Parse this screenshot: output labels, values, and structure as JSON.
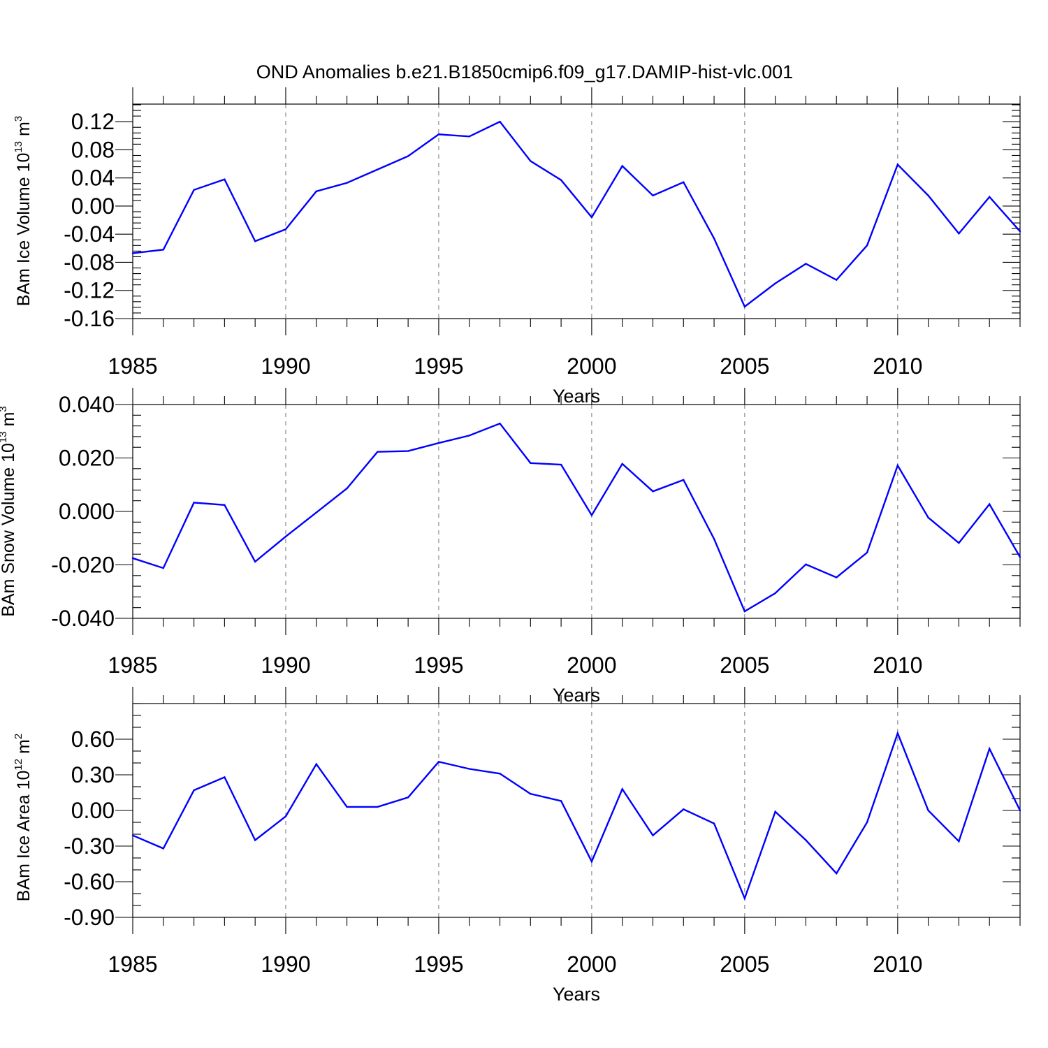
{
  "title": "OND Anomalies b.e21.B1850cmip6.f09_g17.DAMIP-hist-vlc.001",
  "colors": {
    "line": "#0000ff",
    "axis": "#000000",
    "grid": "#777777"
  },
  "chart_data": [
    {
      "type": "line",
      "ylabel_text": "BAm Ice Volume 10",
      "ylabel_exp": "13",
      "ylabel_unit": " m",
      "ylabel_unit_exp": "3",
      "xlabel": "Years",
      "x": [
        1985,
        1986,
        1987,
        1988,
        1989,
        1990,
        1991,
        1992,
        1993,
        1994,
        1995,
        1996,
        1997,
        1998,
        1999,
        2000,
        2001,
        2002,
        2003,
        2004,
        2005,
        2006,
        2007,
        2008,
        2009,
        2010,
        2011,
        2012,
        2013,
        2014
      ],
      "series": [
        {
          "name": "BAm Ice Volume",
          "values": [
            -0.067,
            -0.062,
            0.023,
            0.038,
            -0.05,
            -0.033,
            0.021,
            0.033,
            0.052,
            0.071,
            0.102,
            0.099,
            0.12,
            0.064,
            0.037,
            -0.016,
            0.057,
            0.015,
            0.034,
            -0.046,
            -0.143,
            -0.11,
            -0.082,
            -0.105,
            -0.056,
            0.059,
            0.015,
            -0.039,
            0.013,
            -0.036
          ]
        }
      ],
      "xlim": [
        1985,
        2014
      ],
      "ylim": [
        -0.16,
        0.145
      ],
      "yticks": [
        -0.16,
        -0.12,
        -0.08,
        -0.04,
        0.0,
        0.04,
        0.08,
        0.12
      ],
      "ytick_labels": [
        "-0.16",
        "-0.12",
        "-0.08",
        "-0.04",
        "0.00",
        "0.04",
        "0.08",
        "0.12"
      ],
      "y_minor_step": 0.008,
      "xticks": [
        1985,
        1990,
        1995,
        2000,
        2005,
        2010
      ],
      "xtick_labels": [
        "1985",
        "1990",
        "1995",
        "2000",
        "2005",
        "2010"
      ],
      "grid": "vertical-dashed"
    },
    {
      "type": "line",
      "ylabel_text": "BAm Snow Volume 10",
      "ylabel_exp": "13",
      "ylabel_unit": " m",
      "ylabel_unit_exp": "3",
      "xlabel": "Years",
      "x": [
        1985,
        1986,
        1987,
        1988,
        1989,
        1990,
        1991,
        1992,
        1993,
        1994,
        1995,
        1996,
        1997,
        1998,
        1999,
        2000,
        2001,
        2002,
        2003,
        2004,
        2005,
        2006,
        2007,
        2008,
        2009,
        2010,
        2011,
        2012,
        2013,
        2014
      ],
      "series": [
        {
          "name": "BAm Snow Volume",
          "values": [
            -0.0175,
            -0.0212,
            0.0033,
            0.0024,
            -0.0188,
            -0.0094,
            -0.0004,
            0.0086,
            0.0223,
            0.0226,
            0.0256,
            0.0284,
            0.0329,
            0.0181,
            0.0175,
            -0.0014,
            0.0178,
            0.0075,
            0.0118,
            -0.0103,
            -0.0374,
            -0.0306,
            -0.0198,
            -0.0247,
            -0.0154,
            0.0172,
            -0.0023,
            -0.0118,
            0.0027,
            -0.0171
          ]
        }
      ],
      "xlim": [
        1985,
        2014
      ],
      "ylim": [
        -0.04,
        0.04
      ],
      "yticks": [
        -0.04,
        -0.02,
        0.0,
        0.02,
        0.04
      ],
      "ytick_labels": [
        "-0.040",
        "-0.020",
        "0.000",
        "0.020",
        "0.040"
      ],
      "y_minor_step": 0.004,
      "xticks": [
        1985,
        1990,
        1995,
        2000,
        2005,
        2010
      ],
      "xtick_labels": [
        "1985",
        "1990",
        "1995",
        "2000",
        "2005",
        "2010"
      ],
      "grid": "vertical-dashed"
    },
    {
      "type": "line",
      "ylabel_text": "BAm Ice Area 10",
      "ylabel_exp": "12",
      "ylabel_unit": " m",
      "ylabel_unit_exp": "2",
      "xlabel": "Years",
      "x": [
        1985,
        1986,
        1987,
        1988,
        1989,
        1990,
        1991,
        1992,
        1993,
        1994,
        1995,
        1996,
        1997,
        1998,
        1999,
        2000,
        2001,
        2002,
        2003,
        2004,
        2005,
        2006,
        2007,
        2008,
        2009,
        2010,
        2011,
        2012,
        2013,
        2014
      ],
      "series": [
        {
          "name": "BAm Ice Area",
          "values": [
            -0.21,
            -0.32,
            0.17,
            0.28,
            -0.25,
            -0.05,
            0.39,
            0.03,
            0.03,
            0.11,
            0.41,
            0.35,
            0.31,
            0.14,
            0.08,
            -0.43,
            0.18,
            -0.21,
            0.01,
            -0.11,
            -0.74,
            -0.01,
            -0.25,
            -0.53,
            -0.1,
            0.65,
            0.0,
            -0.26,
            0.52,
            0.0
          ]
        }
      ],
      "xlim": [
        1985,
        2014
      ],
      "ylim": [
        -0.9,
        0.9
      ],
      "yticks": [
        -0.9,
        -0.6,
        -0.3,
        0.0,
        0.3,
        0.6
      ],
      "ytick_labels": [
        "-0.90",
        "-0.60",
        "-0.30",
        "0.00",
        "0.30",
        "0.60"
      ],
      "y_minor_step": 0.1,
      "xticks": [
        1985,
        1990,
        1995,
        2000,
        2005,
        2010
      ],
      "xtick_labels": [
        "1985",
        "1990",
        "1995",
        "2000",
        "2005",
        "2010"
      ],
      "grid": "vertical-dashed"
    }
  ]
}
